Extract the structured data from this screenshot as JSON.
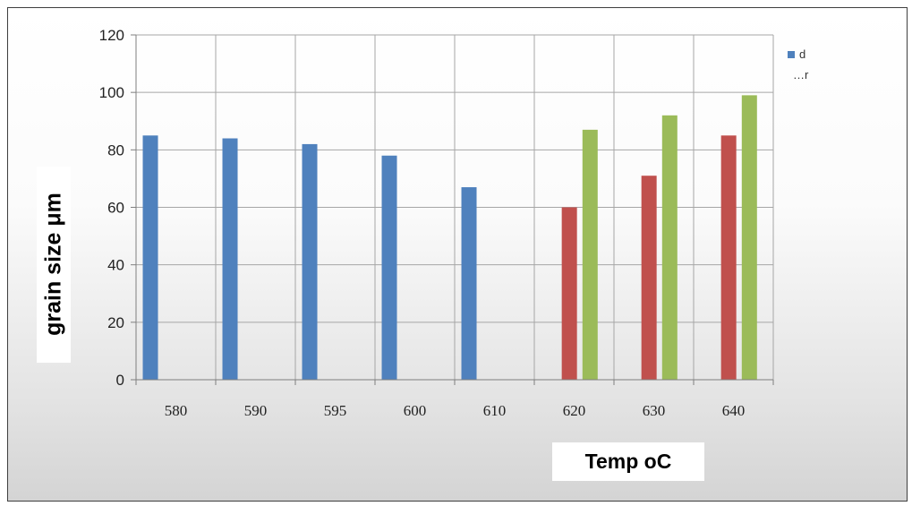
{
  "chart_data": {
    "type": "bar",
    "categories": [
      "580",
      "590",
      "595",
      "600",
      "610",
      "620",
      "630",
      "640"
    ],
    "series": [
      {
        "name": "d",
        "color": "#4f81bd",
        "values": [
          85,
          84,
          82,
          78,
          67,
          null,
          null,
          null
        ]
      },
      {
        "name": "",
        "color": "#c0504d",
        "values": [
          null,
          null,
          null,
          null,
          null,
          60,
          71,
          85
        ]
      },
      {
        "name": "…r",
        "color": "#9bbb59",
        "values": [
          null,
          null,
          null,
          null,
          null,
          87,
          92,
          99
        ]
      }
    ],
    "xlabel": "Temp oC",
    "ylabel": "grain size  μm",
    "ylim": [
      0,
      120
    ],
    "yticks": [
      "0",
      "20",
      "40",
      "60",
      "80",
      "100",
      "120"
    ],
    "grid": true,
    "legend": "top-right"
  }
}
